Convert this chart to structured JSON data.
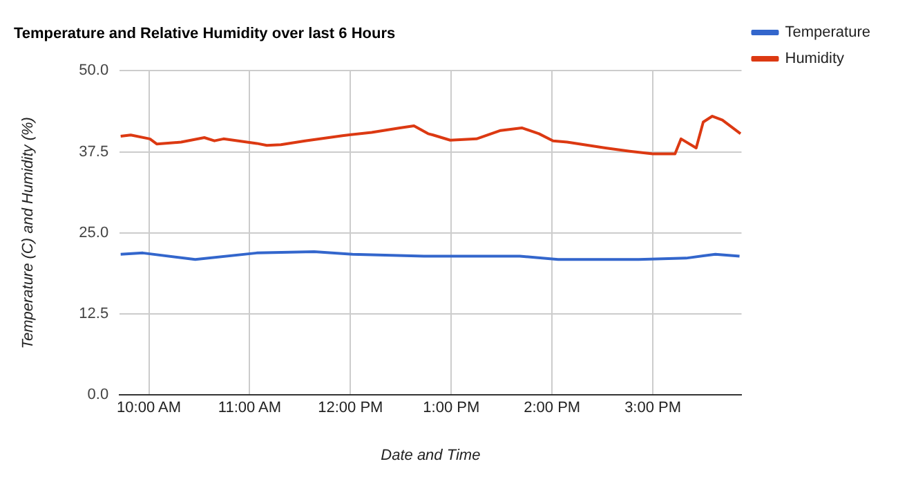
{
  "chart_data": {
    "type": "line",
    "title": "Temperature and Relative Humidity over last 6 Hours",
    "xlabel": "Date and Time",
    "ylabel": "Temperature (C) and Humidity (%)",
    "xlim": [
      9.71,
      15.88
    ],
    "xticks": [
      {
        "value": 10,
        "label": "10:00 AM"
      },
      {
        "value": 11,
        "label": "11:00 AM"
      },
      {
        "value": 12,
        "label": "12:00 PM"
      },
      {
        "value": 13,
        "label": "1:00 PM"
      },
      {
        "value": 14,
        "label": "2:00 PM"
      },
      {
        "value": 15,
        "label": "3:00 PM"
      }
    ],
    "ylim": [
      0,
      50
    ],
    "yticks": [
      {
        "value": 0,
        "label": "0.0"
      },
      {
        "value": 12.5,
        "label": "12.5"
      },
      {
        "value": 25,
        "label": "25.0"
      },
      {
        "value": 37.5,
        "label": "37.5"
      },
      {
        "value": 50,
        "label": "50.0"
      }
    ],
    "grid": true,
    "legend": "top right",
    "marker": "none",
    "line_style": "solid",
    "series": [
      {
        "name": "Temperature",
        "color": "#3366cc",
        "x": [
          9.72,
          9.94,
          10.46,
          11.07,
          11.64,
          12.02,
          12.73,
          13.68,
          14.06,
          14.86,
          15.33,
          15.62,
          15.86
        ],
        "values": [
          21.7,
          21.9,
          20.9,
          21.9,
          22.1,
          21.7,
          21.4,
          21.4,
          20.9,
          20.9,
          21.1,
          21.7,
          21.4
        ]
      },
      {
        "name": "Humidity",
        "color": "#dc3912",
        "x": [
          9.72,
          9.82,
          10.01,
          10.08,
          10.32,
          10.55,
          10.65,
          10.74,
          11.07,
          11.17,
          11.31,
          11.55,
          11.92,
          12.21,
          12.49,
          12.63,
          12.77,
          12.82,
          12.99,
          13.25,
          13.49,
          13.7,
          13.87,
          14.01,
          14.15,
          14.53,
          14.77,
          15.0,
          15.22,
          15.28,
          15.43,
          15.5,
          15.59,
          15.69,
          15.87
        ],
        "values": [
          39.9,
          40.1,
          39.5,
          38.7,
          39.0,
          39.7,
          39.2,
          39.5,
          38.8,
          38.5,
          38.6,
          39.2,
          40.0,
          40.5,
          41.2,
          41.5,
          40.3,
          40.1,
          39.3,
          39.5,
          40.8,
          41.2,
          40.3,
          39.2,
          39.0,
          38.1,
          37.6,
          37.2,
          37.2,
          39.5,
          38.1,
          42.1,
          43.0,
          42.4,
          40.3
        ]
      }
    ]
  }
}
